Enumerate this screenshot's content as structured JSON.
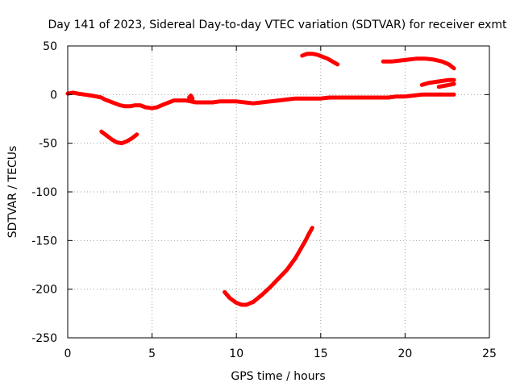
{
  "chart_data": {
    "type": "line",
    "title": "Day 141 of 2023, Sidereal Day-to-day VTEC variation (SDTVAR) for receiver exmt",
    "xlabel": "GPS time / hours",
    "ylabel": "SDTVAR / TECUs",
    "xlim": [
      0,
      25
    ],
    "ylim": [
      -250,
      50
    ],
    "xticks": [
      0,
      5,
      10,
      15,
      20,
      25
    ],
    "yticks": [
      50,
      0,
      -50,
      -100,
      -150,
      -200,
      -250
    ],
    "grid": true,
    "color": "#ff0000",
    "series": [
      {
        "name": "main-track",
        "x": [
          0,
          0.3,
          0.6,
          1.0,
          1.4,
          1.7,
          2.0,
          2.2,
          2.5,
          2.8,
          3.1,
          3.4,
          3.7,
          4.0,
          4.3,
          4.6,
          5.0,
          5.3,
          5.7,
          6.0,
          6.3,
          6.6,
          7.0,
          7.3,
          7.6,
          7.9,
          8.3,
          8.6,
          9.0,
          9.5,
          10.0,
          10.5,
          11.0,
          11.5,
          12.0,
          12.5,
          13.0,
          13.5,
          14.0,
          14.5,
          15.0,
          15.5,
          16.0,
          16.5,
          17.0,
          17.5,
          18.0,
          18.5,
          19.0,
          19.5,
          20.0,
          20.5,
          21.0,
          21.5,
          22.0,
          22.5,
          22.9
        ],
        "y": [
          1,
          2,
          1,
          0,
          -1,
          -2,
          -3,
          -5,
          -7,
          -9,
          -11,
          -12,
          -12,
          -11,
          -11,
          -13,
          -14,
          -13,
          -10,
          -8,
          -6,
          -6,
          -6,
          -7,
          -8,
          -8,
          -8,
          -8,
          -7,
          -7,
          -7,
          -8,
          -9,
          -8,
          -7,
          -6,
          -5,
          -4,
          -4,
          -4,
          -4,
          -3,
          -3,
          -3,
          -3,
          -3,
          -3,
          -3,
          -3,
          -2,
          -2,
          -1,
          0,
          0,
          0,
          0,
          0
        ]
      },
      {
        "name": "arc-minus-40",
        "x": [
          2.0,
          2.3,
          2.6,
          2.9,
          3.2,
          3.5,
          3.8,
          4.1
        ],
        "y": [
          -38,
          -42,
          -46,
          -49,
          -50,
          -48,
          -45,
          -41
        ]
      },
      {
        "name": "descent-arc",
        "x": [
          9.3,
          9.6,
          10.0,
          10.3,
          10.6,
          11.0,
          11.5,
          12.0,
          12.5,
          13.0,
          13.5,
          13.8,
          14.1,
          14.3,
          14.5
        ],
        "y": [
          -203,
          -209,
          -214,
          -216,
          -216,
          -213,
          -206,
          -198,
          -189,
          -180,
          -168,
          -159,
          -150,
          -143,
          -137
        ]
      },
      {
        "name": "top-arc-mid",
        "x": [
          13.9,
          14.2,
          14.5,
          14.8,
          15.1,
          15.4,
          15.7,
          16.0
        ],
        "y": [
          40,
          42,
          42,
          41,
          39,
          37,
          34,
          31
        ]
      },
      {
        "name": "top-arc-right",
        "x": [
          18.7,
          19.2,
          19.7,
          20.2,
          20.7,
          21.2,
          21.7,
          22.2,
          22.6,
          22.9
        ],
        "y": [
          34,
          34,
          35,
          36,
          37,
          37,
          36,
          34,
          31,
          27
        ]
      },
      {
        "name": "short-arc-upper-right",
        "x": [
          21.0,
          21.4,
          21.8,
          22.2,
          22.6,
          22.9
        ],
        "y": [
          10,
          12,
          13,
          14,
          15,
          15
        ]
      },
      {
        "name": "short-arc-lower-right",
        "x": [
          22.0,
          22.3,
          22.6,
          22.9
        ],
        "y": [
          8,
          9,
          10,
          11
        ]
      },
      {
        "name": "spike-near-7",
        "x": [
          7.2,
          7.3,
          7.4
        ],
        "y": [
          -3,
          -1,
          -4
        ]
      }
    ]
  }
}
